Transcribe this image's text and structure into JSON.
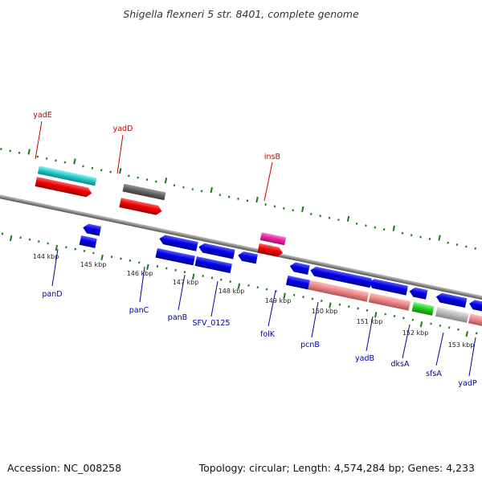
{
  "title": "Shigella flexneri 5 str. 8401, complete genome",
  "footer": {
    "accession": "Accession: NC_008258",
    "topology": "Topology: circular; Length: 4,574,284 bp; Genes: 4,233"
  },
  "colors": {
    "backbone": "#8a8a8a",
    "forward_label": "#cc0000",
    "reverse_label": "#0000aa",
    "tick": "#1a7a1a",
    "blue_gene": "#0000e6",
    "red_gene": "#ee0000",
    "cyan_gene": "#22cccc",
    "gray_gene": "#666666",
    "magenta_gene": "#ee22aa",
    "pink_gene": "#ee8888",
    "green_gene": "#22cc22",
    "lightgray_gene": "#bbbbbb"
  },
  "scale_labels": [
    "144 kbp",
    "145 kbp",
    "146 kbp",
    "147 kbp",
    "148 kbp",
    "149 kbp",
    "150 kbp",
    "151 kbp",
    "152 kbp",
    "153 kbp"
  ],
  "forward_gene_labels": [
    "yadE",
    "yadD",
    "insB"
  ],
  "reverse_gene_labels": [
    "panD",
    "panC",
    "panB",
    "SFV_0125",
    "folK",
    "pcnB",
    "yadB",
    "dksA",
    "sfsA",
    "yadP"
  ]
}
